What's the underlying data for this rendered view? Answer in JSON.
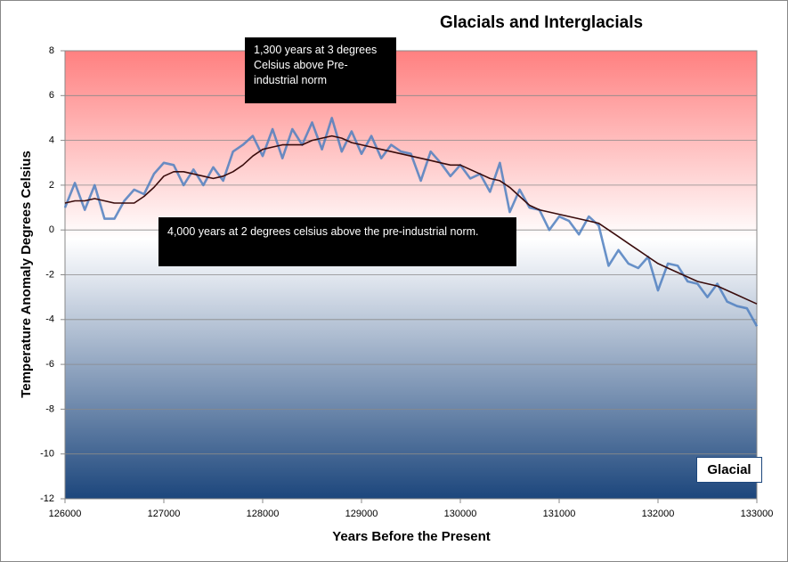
{
  "chart_data": {
    "type": "line",
    "title": "Glacials and Interglacials",
    "x_label": "Years Before the Present",
    "y_label": "Temperature Anomaly Degrees Celsius",
    "annotations": [
      "1,300 years at 3 degrees Celsius above Pre-industrial norm",
      "4,000 years at 2 degrees celsius above the pre-industrial norm.",
      "Glacial"
    ],
    "x": [
      126000,
      126100,
      126200,
      126300,
      126400,
      126500,
      126600,
      126700,
      126800,
      126900,
      127000,
      127100,
      127200,
      127300,
      127400,
      127500,
      127600,
      127700,
      127800,
      127900,
      128000,
      128100,
      128200,
      128300,
      128400,
      128500,
      128600,
      128700,
      128800,
      128900,
      129000,
      129100,
      129200,
      129300,
      129400,
      129500,
      129600,
      129700,
      129800,
      129900,
      130000,
      130100,
      130200,
      130300,
      130400,
      130500,
      130600,
      130700,
      130800,
      130900,
      131000,
      131100,
      131200,
      131300,
      131400,
      131500,
      131600,
      131700,
      131800,
      131900,
      132000,
      132100,
      132200,
      132300,
      132400,
      132500,
      132600,
      132700,
      132800,
      132900,
      133000
    ],
    "series": [
      {
        "color": "#4f7fc0",
        "values": [
          1.0,
          2.1,
          0.9,
          2.0,
          0.5,
          0.5,
          1.3,
          1.8,
          1.6,
          2.5,
          3.0,
          2.9,
          2.0,
          2.7,
          2.0,
          2.8,
          2.2,
          3.5,
          3.8,
          4.2,
          3.3,
          4.5,
          3.2,
          4.5,
          3.8,
          4.8,
          3.6,
          5.0,
          3.5,
          4.4,
          3.4,
          4.2,
          3.2,
          3.8,
          3.5,
          3.4,
          2.2,
          3.5,
          3.0,
          2.4,
          2.9,
          2.3,
          2.5,
          1.7,
          3.0,
          0.8,
          1.8,
          1.0,
          0.9,
          0.0,
          0.6,
          0.4,
          -0.2,
          0.6,
          0.2,
          -1.6,
          -0.9,
          -1.5,
          -1.7,
          -1.2,
          -2.7,
          -1.5,
          -1.6,
          -2.3,
          -2.4,
          -3.0,
          -2.4,
          -3.2,
          -3.4,
          -3.5,
          -4.3
        ]
      },
      {
        "color": "#3a0c0c",
        "values": [
          1.2,
          1.3,
          1.3,
          1.4,
          1.3,
          1.2,
          1.2,
          1.2,
          1.5,
          1.9,
          2.4,
          2.6,
          2.6,
          2.5,
          2.4,
          2.3,
          2.4,
          2.6,
          2.9,
          3.3,
          3.6,
          3.7,
          3.8,
          3.8,
          3.8,
          4.0,
          4.1,
          4.2,
          4.1,
          3.9,
          3.8,
          3.7,
          3.6,
          3.5,
          3.4,
          3.3,
          3.2,
          3.1,
          3.0,
          2.9,
          2.9,
          2.7,
          2.5,
          2.3,
          2.2,
          1.9,
          1.5,
          1.1,
          0.9,
          0.8,
          0.7,
          0.6,
          0.5,
          0.4,
          0.3,
          0.0,
          -0.3,
          -0.6,
          -0.9,
          -1.2,
          -1.5,
          -1.7,
          -1.9,
          -2.1,
          -2.3,
          -2.4,
          -2.5,
          -2.7,
          -2.9,
          -3.1,
          -3.3
        ]
      }
    ],
    "xlim": [
      126000,
      133000
    ],
    "xticks": [
      126000,
      127000,
      128000,
      129000,
      130000,
      131000,
      132000,
      133000
    ],
    "ylim": [
      -12,
      8
    ],
    "yticks": [
      -12,
      -10,
      -8,
      -6,
      -4,
      -2,
      0,
      2,
      4,
      6,
      8
    ],
    "grid": true
  }
}
